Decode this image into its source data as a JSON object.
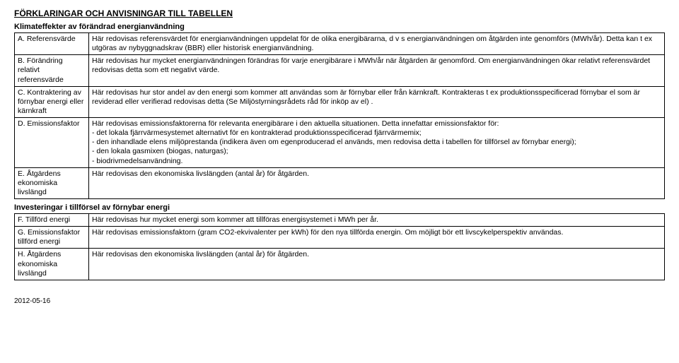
{
  "title": "FÖRKLARINGAR OCH ANVISNINGAR TILL TABELLEN",
  "section1": {
    "heading": "Klimateffekter av förändrad energianvändning",
    "rows": [
      {
        "label": "A. Referensvärde",
        "desc": "Här redovisas referensvärdet för energianvändningen uppdelat för de olika energibärarna, d v s energianvändningen om åtgärden inte genomförs (MWh/år). Detta kan t ex utgöras av nybyggnadskrav (BBR) eller historisk energianvändning."
      },
      {
        "label": "B. Förändring relativt referensvärde",
        "desc": "Här redovisas hur mycket energianvändningen förändras för varje energibärare i MWh/år när åtgärden är genomförd. Om energianvändningen ökar relativt referensvärdet redovisas detta som ett negativt värde."
      },
      {
        "label": "C. Kontraktering av förnybar energi eller kärnkraft",
        "desc": "Här redovisas hur stor andel av den energi som kommer att användas som är förnybar eller från kärnkraft. Kontrakteras t ex produktionsspecificerad förnybar el som är reviderad eller verifierad redovisas detta (Se Miljöstyrningsrådets råd för inköp av el) ."
      },
      {
        "label": "D. Emissionsfaktor",
        "desc": "Här redovisas emissionsfaktorerna för relevanta energibärare i den aktuella situationen. Detta innefattar emissionsfaktor för:\n- det lokala fjärrvärmesystemet alternativt för en kontrakterad produktionsspecificerad fjärrvärmemix;\n- den inhandlade elens miljöprestanda (indikera även om egenproducerad el används, men redovisa detta i tabellen för tillförsel av förnybar energi);\n- den lokala gasmixen (biogas, naturgas);\n- biodrivmedelsanvändning."
      },
      {
        "label": "E. Åtgärdens ekonomiska livslängd",
        "desc": "Här redovisas den ekonomiska livslängden (antal år) för åtgärden."
      }
    ]
  },
  "section2": {
    "heading": "Investeringar i tillförsel av förnybar energi",
    "rows": [
      {
        "label": "F. Tillförd energi",
        "desc": "Här redovisas hur mycket energi som kommer att tillföras energisystemet i MWh per år."
      },
      {
        "label": "G. Emissionsfaktor tillförd energi",
        "desc": "Här redovisas emissionsfaktorn (gram CO2-ekvivalenter per kWh) för den nya tillförda energin. Om möjligt bör ett livscykelperspektiv användas."
      },
      {
        "label": "H. Åtgärdens ekonomiska livslängd",
        "desc": "Här redovisas den ekonomiska livslängden (antal år) för åtgärden."
      }
    ]
  },
  "footer_date": "2012-05-16"
}
